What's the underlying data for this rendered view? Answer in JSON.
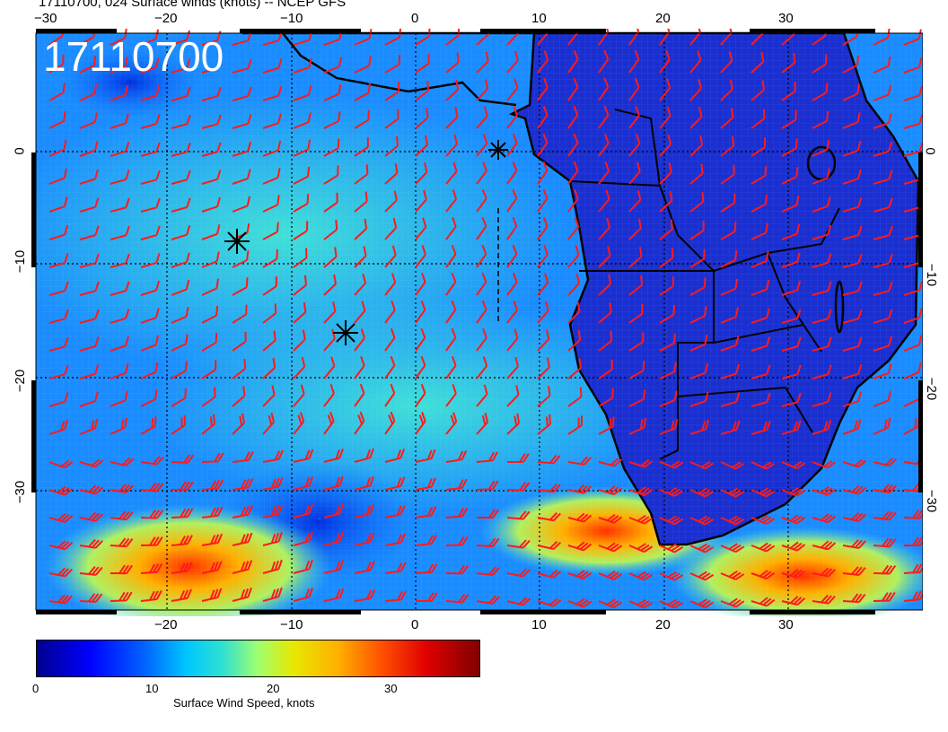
{
  "title": "17110700, 024 Surface winds (knots) -- NCEP GFS",
  "stamp": "17110700",
  "axes": {
    "top_lon": [
      "−20",
      "−10",
      "0",
      "10",
      "20",
      "30"
    ],
    "bottom_lon": [
      "−20",
      "−10",
      "0",
      "10",
      "20",
      "30"
    ],
    "left_lat": [
      "0",
      "−10",
      "−20",
      "−30"
    ],
    "right_lat": [
      "0",
      "−10",
      "−20",
      "−30"
    ],
    "top_partial": "−30"
  },
  "colorbar": {
    "ticks": [
      "0",
      "10",
      "20",
      "30"
    ],
    "title": "Surface Wind Speed, knots",
    "colors": [
      "#00008f",
      "#0000ff",
      "#00c8ff",
      "#e8e800",
      "#ff5000",
      "#800000"
    ]
  },
  "map": {
    "ocean_color": "#1a8cff",
    "land_color": "#1a2fd0",
    "barb_color": "#ff1a1a",
    "icons": [
      "star-marker-icon"
    ]
  }
}
